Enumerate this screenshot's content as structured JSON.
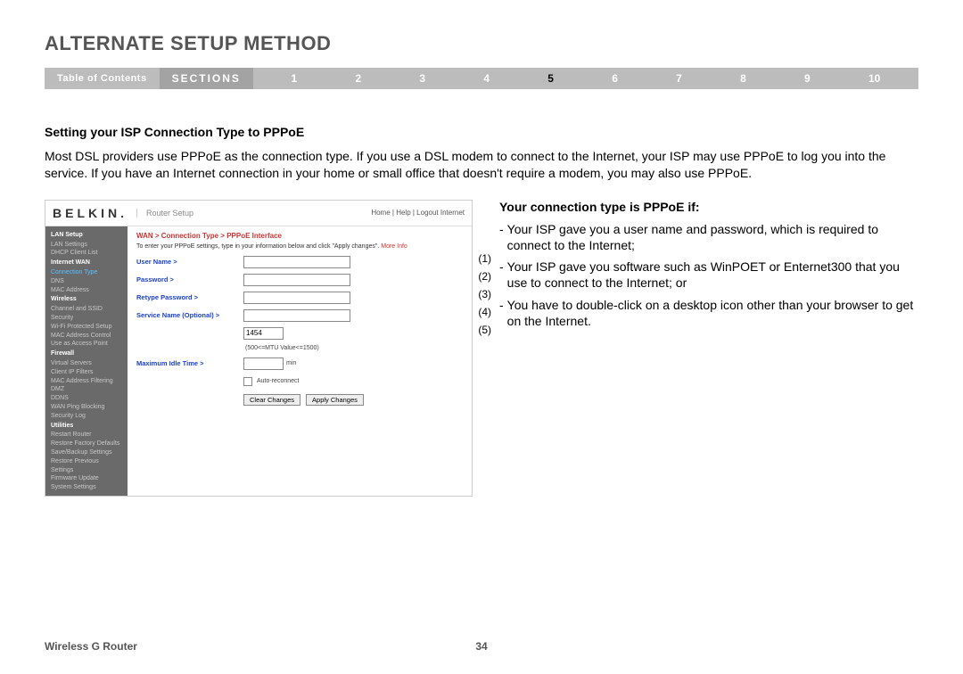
{
  "page_title": "ALTERNATE SETUP METHOD",
  "nav": {
    "toc": "Table of Contents",
    "sections": "SECTIONS",
    "nums": [
      "1",
      "2",
      "3",
      "4",
      "5",
      "6",
      "7",
      "8",
      "9",
      "10"
    ],
    "active_index": 4
  },
  "subheading": "Setting your ISP Connection Type to PPPoE",
  "body_text": "Most DSL providers use PPPoE as the connection type. If you use a DSL modem to connect to the Internet, your ISP may use PPPoE to log you into the service. If you have an Internet connection in your home or small office that doesn't require a modem, you may also use PPPoE.",
  "screenshot": {
    "logo": "BELKIN.",
    "logo_sub": "Router Setup",
    "head_links": "Home | Help | Logout  Internet",
    "sidebar": [
      {
        "t": "grp",
        "v": "LAN Setup"
      },
      {
        "t": "itm",
        "v": "LAN Settings"
      },
      {
        "t": "itm",
        "v": "DHCP Client List"
      },
      {
        "t": "grp",
        "v": "Internet WAN"
      },
      {
        "t": "itm hl",
        "v": "Connection Type"
      },
      {
        "t": "itm",
        "v": "DNS"
      },
      {
        "t": "itm",
        "v": "MAC Address"
      },
      {
        "t": "grp",
        "v": "Wireless"
      },
      {
        "t": "itm",
        "v": "Channel and SSID"
      },
      {
        "t": "itm",
        "v": "Security"
      },
      {
        "t": "itm",
        "v": "Wi-Fi Protected Setup"
      },
      {
        "t": "itm",
        "v": "MAC Address Control"
      },
      {
        "t": "itm",
        "v": "Use as Access Point"
      },
      {
        "t": "grp",
        "v": "Firewall"
      },
      {
        "t": "itm",
        "v": "Virtual Servers"
      },
      {
        "t": "itm",
        "v": "Client IP Filters"
      },
      {
        "t": "itm",
        "v": "MAC Address Filtering"
      },
      {
        "t": "itm",
        "v": "DMZ"
      },
      {
        "t": "itm",
        "v": "DDNS"
      },
      {
        "t": "itm",
        "v": "WAN Ping Blocking"
      },
      {
        "t": "itm",
        "v": "Security Log"
      },
      {
        "t": "grp",
        "v": "Utilities"
      },
      {
        "t": "itm",
        "v": "Restart Router"
      },
      {
        "t": "itm",
        "v": "Restore Factory Defaults"
      },
      {
        "t": "itm",
        "v": "Save/Backup Settings"
      },
      {
        "t": "itm",
        "v": "Restore Previous Settings"
      },
      {
        "t": "itm",
        "v": "Firmware Update"
      },
      {
        "t": "itm",
        "v": "System Settings"
      }
    ],
    "crumb": "WAN > Connection Type > PPPoE Interface",
    "instr": "To enter your PPPoE settings, type in your information below and click \"Apply changes\".",
    "more": "More Info",
    "fields": {
      "user": "User Name >",
      "pass": "Password >",
      "retype": "Retype Password >",
      "service": "Service Name (Optional) >",
      "mtu_val": "1454",
      "mtu_note": "(500<=MTU Value<=1500)",
      "idle": "Maximum Idle Time >",
      "idle_unit": "min",
      "auto": "Auto-reconnect"
    },
    "btn_clear": "Clear Changes",
    "btn_apply": "Apply Changes",
    "callouts": [
      "(1)",
      "(2)",
      "(3)",
      "(4)",
      "(5)"
    ]
  },
  "right": {
    "heading": "Your connection type is PPPoE if:",
    "items": [
      "Your ISP gave you a user name and password, which is required to connect to the Internet;",
      "Your ISP gave you software such as WinPOET or Enternet300 that you use to connect to the Internet; or",
      "You have to double-click on a desktop icon other than your browser to get on the Internet."
    ]
  },
  "footer": {
    "left": "Wireless G Router",
    "page": "34"
  }
}
